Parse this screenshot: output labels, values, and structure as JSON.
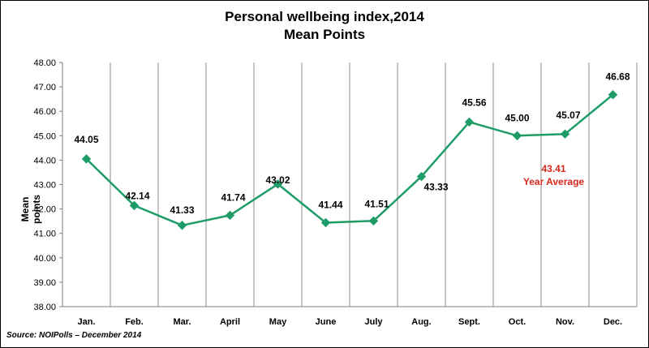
{
  "source": "Source: NOIPolls – December 2014",
  "chart_data": {
    "type": "line",
    "title": [
      "Personal wellbeing index,2014",
      "Mean Points"
    ],
    "xlabel": "",
    "ylabel": "Mean points",
    "categories": [
      "Jan.",
      "Feb.",
      "Mar.",
      "April",
      "May",
      "June",
      "July",
      "Aug.",
      "Sept.",
      "Oct.",
      "Nov.",
      "Dec."
    ],
    "values": [
      44.05,
      42.14,
      41.33,
      41.74,
      43.02,
      41.44,
      41.51,
      43.33,
      45.56,
      45.0,
      45.07,
      46.68
    ],
    "value_labels": [
      "44.05",
      "42.14",
      "41.33",
      "41.74",
      "43.02",
      "41.44",
      "41.51",
      "43.33",
      "45.56",
      "45.00",
      "45.07",
      "46.68"
    ],
    "ylim": [
      38.0,
      48.0
    ],
    "yticks": [
      "38.00",
      "39.00",
      "40.00",
      "41.00",
      "42.00",
      "43.00",
      "44.00",
      "45.00",
      "46.00",
      "47.00",
      "48.00"
    ],
    "grid": "vertical",
    "legend": "none",
    "line_color": "#1e9c68",
    "grid_color": "#8c8c8c",
    "annotation": {
      "value": "43.41",
      "text": "Year Average",
      "color": "#d9261c"
    }
  }
}
